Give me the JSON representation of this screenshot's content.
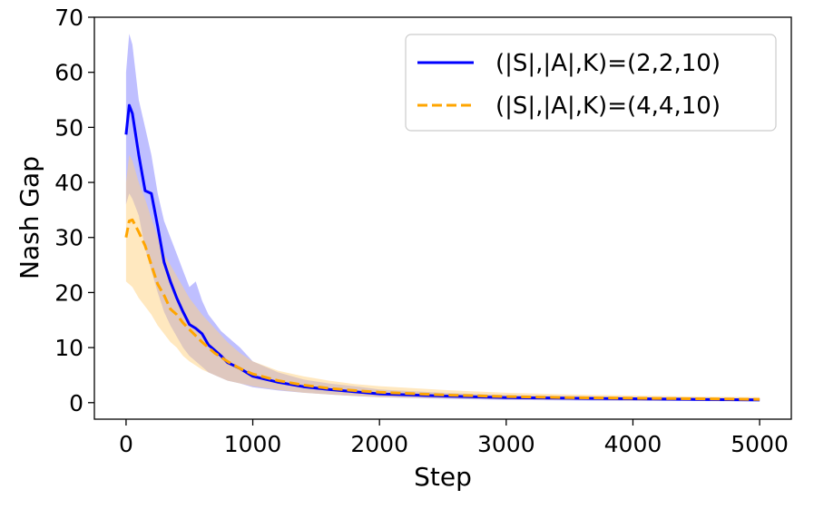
{
  "chart_data": {
    "type": "line",
    "title": "",
    "xlabel": "Step",
    "ylabel": "Nash Gap",
    "xlim": [
      -250,
      5250
    ],
    "ylim": [
      -3,
      70
    ],
    "xticks": [
      0,
      1000,
      2000,
      3000,
      4000,
      5000
    ],
    "yticks": [
      0,
      10,
      20,
      30,
      40,
      50,
      60,
      70
    ],
    "grid": false,
    "legend_position": "top-right",
    "series": [
      {
        "name": "(|S|,|A|,K)=(2,2,10)",
        "color": "#0000ff",
        "band_color": "#8080ff",
        "line_style": "solid",
        "x": [
          0,
          25,
          50,
          100,
          150,
          200,
          250,
          300,
          350,
          400,
          450,
          500,
          550,
          600,
          650,
          700,
          750,
          800,
          900,
          1000,
          1200,
          1400,
          1600,
          1800,
          2000,
          2500,
          3000,
          3500,
          4000,
          4500,
          5000
        ],
        "y": [
          48.7,
          54.0,
          52.5,
          45.0,
          38.5,
          38.0,
          32.0,
          25.5,
          22.0,
          19.0,
          16.5,
          14.2,
          13.5,
          12.5,
          10.5,
          9.5,
          8.5,
          7.3,
          6.2,
          4.8,
          3.7,
          2.9,
          2.4,
          2.0,
          1.6,
          1.2,
          0.9,
          0.8,
          0.7,
          0.6,
          0.5
        ],
        "lower": [
          36.0,
          38.0,
          37.0,
          34.0,
          28.0,
          24.0,
          20.0,
          16.5,
          14.0,
          12.0,
          10.0,
          8.5,
          7.5,
          6.5,
          5.5,
          5.0,
          4.5,
          4.0,
          3.5,
          2.8,
          2.2,
          1.8,
          1.5,
          1.2,
          1.0,
          0.7,
          0.5,
          0.4,
          0.3,
          0.3,
          0.2
        ],
        "upper": [
          60.0,
          67.0,
          65.0,
          55.0,
          50.0,
          45.0,
          38.0,
          33.0,
          30.0,
          27.0,
          24.0,
          21.0,
          22.0,
          18.5,
          16.0,
          14.5,
          13.0,
          12.0,
          10.0,
          7.5,
          5.5,
          4.2,
          3.5,
          3.0,
          2.4,
          1.8,
          1.4,
          1.2,
          1.0,
          0.9,
          0.8
        ]
      },
      {
        "name": "(|S|,|A|,K)=(4,4,10)",
        "color": "#ffa500",
        "band_color": "#ffd27f",
        "line_style": "dashed",
        "x": [
          0,
          25,
          50,
          100,
          150,
          200,
          250,
          300,
          350,
          400,
          450,
          500,
          600,
          700,
          800,
          900,
          1000,
          1200,
          1400,
          1600,
          1800,
          2000,
          2500,
          3000,
          3500,
          4000,
          4500,
          5000
        ],
        "y": [
          30.0,
          33.0,
          33.2,
          31.0,
          28.5,
          25.0,
          21.5,
          19.5,
          17.0,
          16.0,
          14.5,
          13.3,
          11.0,
          9.0,
          7.5,
          6.2,
          5.2,
          4.0,
          3.2,
          2.6,
          2.2,
          1.9,
          1.4,
          1.1,
          0.9,
          0.8,
          0.7,
          0.6
        ],
        "lower": [
          22.0,
          21.5,
          21.0,
          19.0,
          17.5,
          16.0,
          14.0,
          12.5,
          11.0,
          10.0,
          8.5,
          7.5,
          6.0,
          5.0,
          4.0,
          3.5,
          3.0,
          2.3,
          1.8,
          1.5,
          1.2,
          1.0,
          0.8,
          0.6,
          0.5,
          0.4,
          0.4,
          0.3
        ],
        "upper": [
          40.0,
          45.0,
          44.0,
          40.0,
          37.0,
          33.5,
          30.0,
          27.0,
          25.0,
          23.0,
          21.0,
          19.0,
          16.0,
          13.5,
          11.0,
          9.0,
          7.5,
          5.8,
          4.8,
          4.0,
          3.4,
          3.0,
          2.3,
          1.8,
          1.5,
          1.3,
          1.1,
          1.0
        ]
      }
    ]
  }
}
